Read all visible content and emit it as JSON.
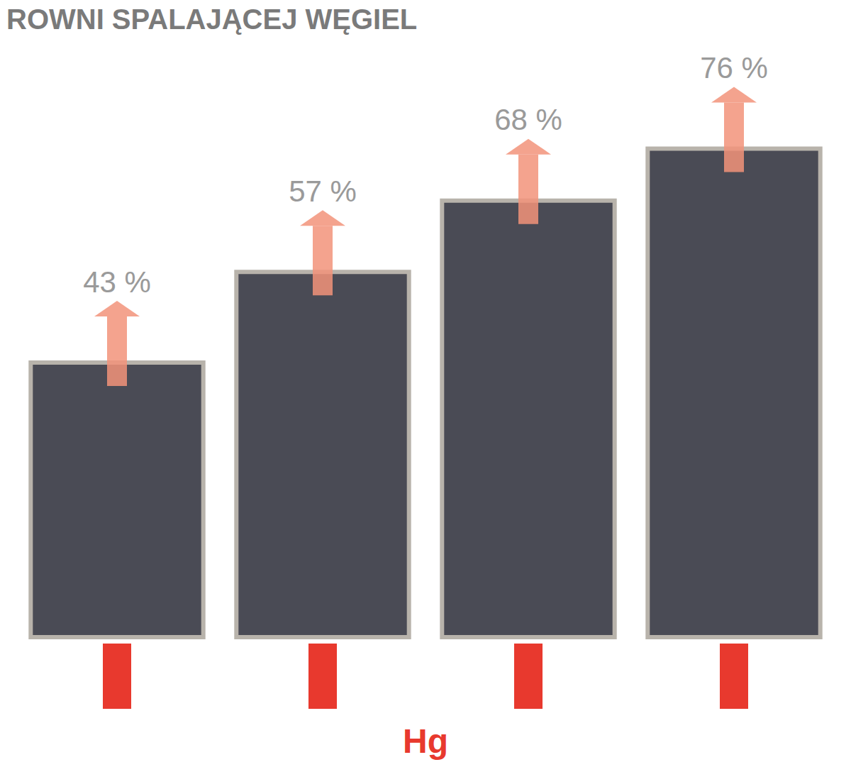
{
  "chart_data": {
    "type": "bar",
    "title": "ROWNI SPALAJĄCEJ WĘGIEL",
    "categories": [
      null,
      null,
      null,
      null
    ],
    "values": [
      43,
      57,
      68,
      76
    ],
    "value_labels": [
      "43 %",
      "57 %",
      "68 %",
      "76 %"
    ],
    "color": "#4a4b55",
    "ylim": [
      0,
      80
    ],
    "tick_labels": false,
    "data_labels": true,
    "grid": false,
    "annotations": [
      "Hg"
    ]
  }
}
